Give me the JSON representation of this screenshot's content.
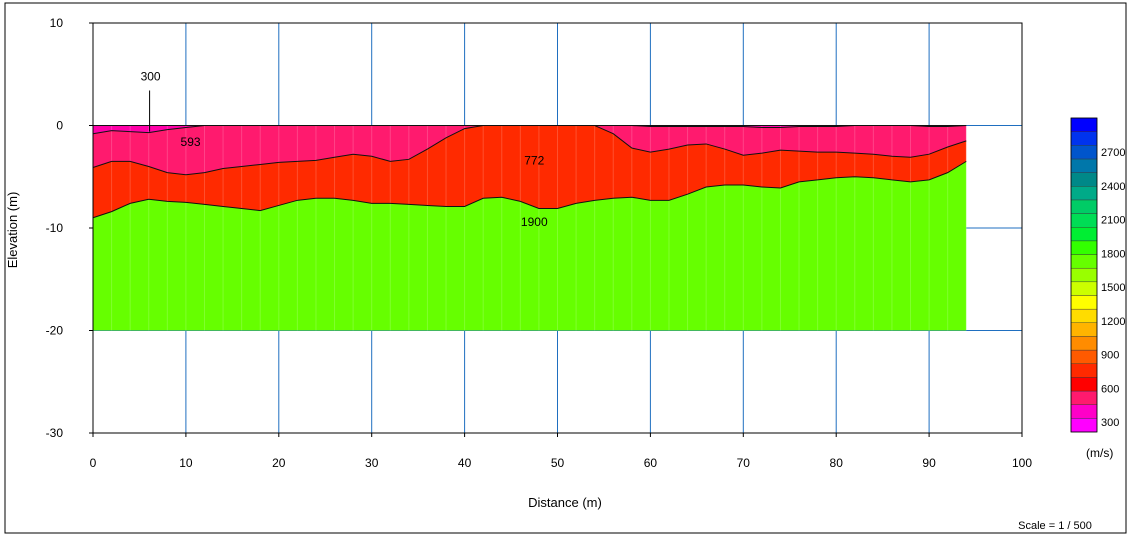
{
  "chart_data": {
    "type": "area",
    "xlabel": "Distance (m)",
    "ylabel": "Elevation (m)",
    "xlim": [
      0,
      100
    ],
    "ylim": [
      -30,
      10
    ],
    "xticks": [
      0,
      10,
      20,
      30,
      40,
      50,
      60,
      70,
      80,
      90,
      100
    ],
    "yticks": [
      10,
      0,
      -10,
      -20,
      -30
    ],
    "grid": true,
    "layers": [
      {
        "velocity": "593",
        "color": "#ff1a6e"
      },
      {
        "velocity": "772",
        "color": "#ff2a00"
      },
      {
        "velocity": "1900",
        "color": "#66ff00"
      }
    ],
    "section": {
      "x_range": [
        0,
        94
      ],
      "bottom": -20
    },
    "surface": {
      "x": [
        0,
        94
      ],
      "y": [
        0,
        0
      ]
    },
    "boundary_1": {
      "x": [
        0,
        2,
        4,
        6,
        8,
        10,
        12,
        14,
        16,
        18,
        20,
        22,
        24,
        26,
        28,
        30,
        32,
        34,
        36,
        38,
        40,
        42,
        44,
        46,
        48,
        50,
        52,
        54,
        56,
        58,
        60,
        62,
        64,
        66,
        68,
        70,
        72,
        74,
        76,
        78,
        80,
        82,
        84,
        86,
        88,
        90,
        92,
        94
      ],
      "y": [
        -0.8,
        -0.5,
        -0.6,
        -0.7,
        -0.4,
        -0.2,
        0,
        0,
        0,
        0,
        0,
        0,
        0,
        0,
        0,
        0,
        0,
        0,
        0,
        0,
        0,
        0,
        0,
        0,
        0,
        0,
        0,
        0,
        0,
        0,
        -0.1,
        -0.1,
        -0.1,
        -0.1,
        -0.1,
        -0.1,
        -0.2,
        -0.2,
        -0.1,
        -0.1,
        -0.1,
        0,
        0,
        0,
        0,
        -0.1,
        -0.1,
        0
      ]
    },
    "boundary_2": {
      "x": [
        0,
        2,
        4,
        6,
        8,
        10,
        12,
        14,
        16,
        18,
        20,
        22,
        24,
        26,
        28,
        30,
        32,
        34,
        36,
        38,
        40,
        42,
        44,
        46,
        48,
        50,
        52,
        54,
        56,
        58,
        60,
        62,
        64,
        66,
        68,
        70,
        72,
        74,
        76,
        78,
        80,
        82,
        84,
        86,
        88,
        90,
        92,
        94
      ],
      "y": [
        -4.1,
        -3.5,
        -3.5,
        -4,
        -4.6,
        -4.8,
        -4.6,
        -4.2,
        -4,
        -3.8,
        -3.6,
        -3.5,
        -3.4,
        -3.1,
        -2.8,
        -3,
        -3.5,
        -3.3,
        -2.3,
        -1.2,
        -0.3,
        0,
        0,
        0,
        0,
        0,
        0,
        0,
        -0.8,
        -2.2,
        -2.6,
        -2.3,
        -1.9,
        -1.8,
        -2.3,
        -2.9,
        -2.7,
        -2.4,
        -2.5,
        -2.6,
        -2.6,
        -2.7,
        -2.8,
        -3,
        -3.1,
        -2.8,
        -2.1,
        -1.5
      ]
    },
    "boundary_3": {
      "x": [
        0,
        2,
        4,
        6,
        8,
        10,
        12,
        14,
        16,
        18,
        20,
        22,
        24,
        26,
        28,
        30,
        32,
        34,
        36,
        38,
        40,
        42,
        44,
        46,
        48,
        50,
        52,
        54,
        56,
        58,
        60,
        62,
        64,
        66,
        68,
        70,
        72,
        74,
        76,
        78,
        80,
        82,
        84,
        86,
        88,
        90,
        92,
        94
      ],
      "y": [
        -9,
        -8.4,
        -7.6,
        -7.2,
        -7.4,
        -7.5,
        -7.7,
        -7.9,
        -8.1,
        -8.3,
        -7.8,
        -7.3,
        -7.1,
        -7.1,
        -7.3,
        -7.6,
        -7.6,
        -7.7,
        -7.8,
        -7.9,
        -7.9,
        -7.1,
        -7,
        -7.4,
        -8.1,
        -8.1,
        -7.6,
        -7.3,
        -7.1,
        -7,
        -7.3,
        -7.3,
        -6.7,
        -6,
        -5.8,
        -5.8,
        -6,
        -6.1,
        -5.5,
        -5.3,
        -5.1,
        -5,
        -5.1,
        -5.3,
        -5.5,
        -5.3,
        -4.6,
        -3.5
      ]
    },
    "annotations": [
      {
        "text": "300",
        "x": 6.2,
        "y": -0.6,
        "label_y": 4
      },
      {
        "text": "593",
        "x": 10.5,
        "y": -2
      },
      {
        "text": "772",
        "x": 47.5,
        "y": -3.8
      },
      {
        "text": "1900",
        "x": 47.5,
        "y": -9.8
      }
    ]
  },
  "color_scale": {
    "unit": "(m/s)",
    "labels": [
      "2700",
      "2400",
      "2100",
      "1800",
      "1500",
      "1200",
      "900",
      "600",
      "300"
    ],
    "colors": [
      "#ff00ff",
      "#ff00c8",
      "#ff1a6e",
      "#ff0000",
      "#ff2a00",
      "#ff5a00",
      "#ff8c00",
      "#ffb400",
      "#ffdc00",
      "#ffff00",
      "#ccff00",
      "#99ff00",
      "#66ff00",
      "#33ff00",
      "#00ee33",
      "#00dd55",
      "#00cc66",
      "#00aa88",
      "#008888",
      "#0077aa",
      "#0055cc",
      "#0033ee",
      "#0000ff"
    ]
  },
  "scale_text": "Scale = 1 / 500"
}
